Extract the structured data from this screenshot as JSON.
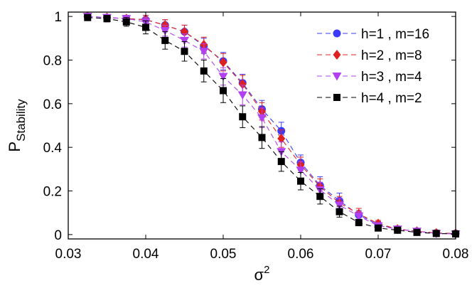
{
  "chart_data": {
    "type": "line",
    "title": "",
    "xlabel": "σ²",
    "xlabel_base": "σ",
    "xlabel_sup": "2",
    "ylabel": "P Stability",
    "ylabel_main": "P",
    "ylabel_sub": "Stability",
    "xlim": [
      0.03,
      0.08
    ],
    "ylim": [
      -0.02,
      1.02
    ],
    "x_ticks": [
      0.03,
      0.04,
      0.05,
      0.06,
      0.07,
      0.08
    ],
    "x_tick_labels": [
      "0.03",
      "0.04",
      "0.05",
      "0.06",
      "0.07",
      "0.08"
    ],
    "y_ticks": [
      0,
      0.2,
      0.4,
      0.6,
      0.8,
      1
    ],
    "y_tick_labels": [
      "0",
      "0.2",
      "0.4",
      "0.6",
      "0.8",
      "1"
    ],
    "grid": false,
    "legend_position": "top-right",
    "x": [
      0.0325,
      0.035,
      0.0375,
      0.04,
      0.0425,
      0.045,
      0.0475,
      0.05,
      0.0525,
      0.055,
      0.0575,
      0.06,
      0.0625,
      0.065,
      0.0675,
      0.07,
      0.0725,
      0.075,
      0.0775,
      0.08
    ],
    "series": [
      {
        "name": "h=1 , m=16",
        "color": "#3a3aff",
        "marker": "circle",
        "values": [
          1.0,
          0.995,
          0.99,
          0.985,
          0.96,
          0.93,
          0.865,
          0.795,
          0.695,
          0.575,
          0.475,
          0.33,
          0.225,
          0.155,
          0.09,
          0.045,
          0.025,
          0.015,
          0.007,
          0.005
        ],
        "errors": [
          0.012,
          0.012,
          0.015,
          0.02,
          0.025,
          0.03,
          0.035,
          0.04,
          0.04,
          0.04,
          0.04,
          0.035,
          0.04,
          0.035,
          0.02,
          0.015,
          0.01,
          0.01,
          0.008,
          0.005
        ]
      },
      {
        "name": "h=2 , m=8",
        "color": "#e02020",
        "marker": "diamond",
        "values": [
          1.0,
          0.995,
          0.99,
          0.985,
          0.96,
          0.93,
          0.87,
          0.79,
          0.69,
          0.565,
          0.44,
          0.32,
          0.22,
          0.145,
          0.095,
          0.05,
          0.025,
          0.015,
          0.007,
          0.005
        ],
        "errors": [
          0.01,
          0.01,
          0.012,
          0.02,
          0.025,
          0.03,
          0.035,
          0.04,
          0.04,
          0.04,
          0.04,
          0.035,
          0.035,
          0.03,
          0.025,
          0.015,
          0.01,
          0.008,
          0.006,
          0.004
        ]
      },
      {
        "name": "h=3 , m=4",
        "color": "#b040f0",
        "marker": "triangle-down",
        "values": [
          1.0,
          0.995,
          0.99,
          0.975,
          0.935,
          0.89,
          0.84,
          0.725,
          0.64,
          0.535,
          0.38,
          0.295,
          0.205,
          0.135,
          0.085,
          0.04,
          0.025,
          0.015,
          0.005,
          0.003
        ],
        "errors": [
          0.01,
          0.01,
          0.015,
          0.02,
          0.025,
          0.03,
          0.035,
          0.04,
          0.045,
          0.045,
          0.045,
          0.04,
          0.035,
          0.03,
          0.02,
          0.015,
          0.01,
          0.008,
          0.005,
          0.003
        ]
      },
      {
        "name": "h=4 , m=2",
        "color": "#000000",
        "marker": "square",
        "values": [
          0.995,
          0.99,
          0.975,
          0.95,
          0.89,
          0.84,
          0.75,
          0.66,
          0.54,
          0.445,
          0.335,
          0.245,
          0.175,
          0.105,
          0.055,
          0.03,
          0.02,
          0.01,
          0.005,
          0.003
        ],
        "errors": [
          0.012,
          0.015,
          0.02,
          0.03,
          0.04,
          0.045,
          0.05,
          0.055,
          0.05,
          0.05,
          0.045,
          0.04,
          0.035,
          0.025,
          0.015,
          0.01,
          0.008,
          0.006,
          0.004,
          0.003
        ]
      }
    ]
  }
}
